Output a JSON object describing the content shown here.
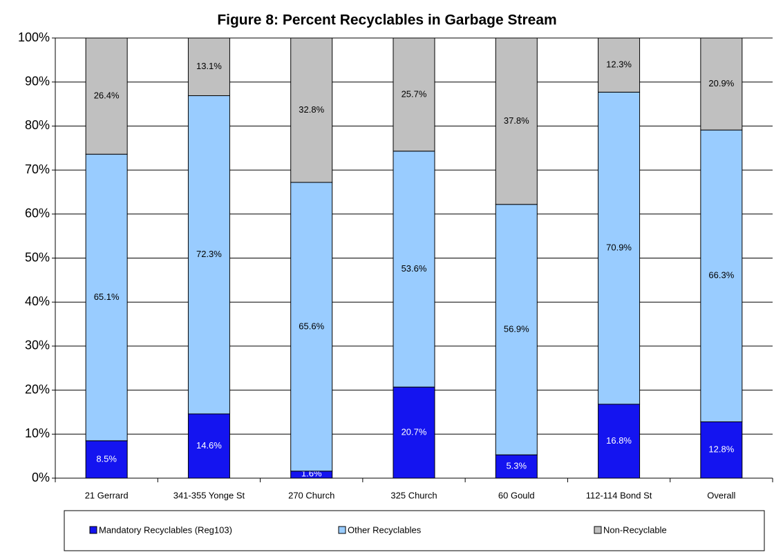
{
  "chart_data": {
    "type": "stacked_bar",
    "title": "Figure 8: Percent Recyclables in Garbage Stream",
    "categories": [
      "21 Gerrard",
      "341-355 Yonge St",
      "270 Church",
      "325 Church",
      "60 Gould",
      "112-114 Bond St",
      "Overall"
    ],
    "series": [
      {
        "name": "Mandatory Recyclables (Reg103)",
        "color": "#1414f0",
        "values": [
          8.5,
          14.6,
          1.6,
          20.7,
          5.3,
          16.8,
          12.8
        ],
        "value_labels": [
          "8.5%",
          "14.6%",
          "1.6%",
          "20.7%",
          "5.3%",
          "16.8%",
          "12.8%"
        ]
      },
      {
        "name": "Other Recyclables",
        "color": "#99ccff",
        "values": [
          65.1,
          72.3,
          65.6,
          53.6,
          56.9,
          70.9,
          66.3
        ],
        "value_labels": [
          "65.1%",
          "72.3%",
          "65.6%",
          "53.6%",
          "56.9%",
          "70.9%",
          "66.3%"
        ]
      },
      {
        "name": "Non-Recyclable",
        "color": "#c0c0c0",
        "values": [
          26.4,
          13.1,
          32.8,
          25.7,
          37.8,
          12.3,
          20.9
        ],
        "value_labels": [
          "26.4%",
          "13.1%",
          "32.8%",
          "25.7%",
          "37.8%",
          "12.3%",
          "20.9%"
        ]
      }
    ],
    "ylim": [
      0,
      100
    ],
    "yticks": [
      {
        "value": 0,
        "label": "0%"
      },
      {
        "value": 10,
        "label": "10%"
      },
      {
        "value": 20,
        "label": "20%"
      },
      {
        "value": 30,
        "label": "30%"
      },
      {
        "value": 40,
        "label": "40%"
      },
      {
        "value": 50,
        "label": "50%"
      },
      {
        "value": 60,
        "label": "60%"
      },
      {
        "value": 70,
        "label": "70%"
      },
      {
        "value": 80,
        "label": "80%"
      },
      {
        "value": 90,
        "label": "90%"
      },
      {
        "value": 100,
        "label": "100%"
      }
    ],
    "grid": true,
    "legend": "bottom"
  }
}
